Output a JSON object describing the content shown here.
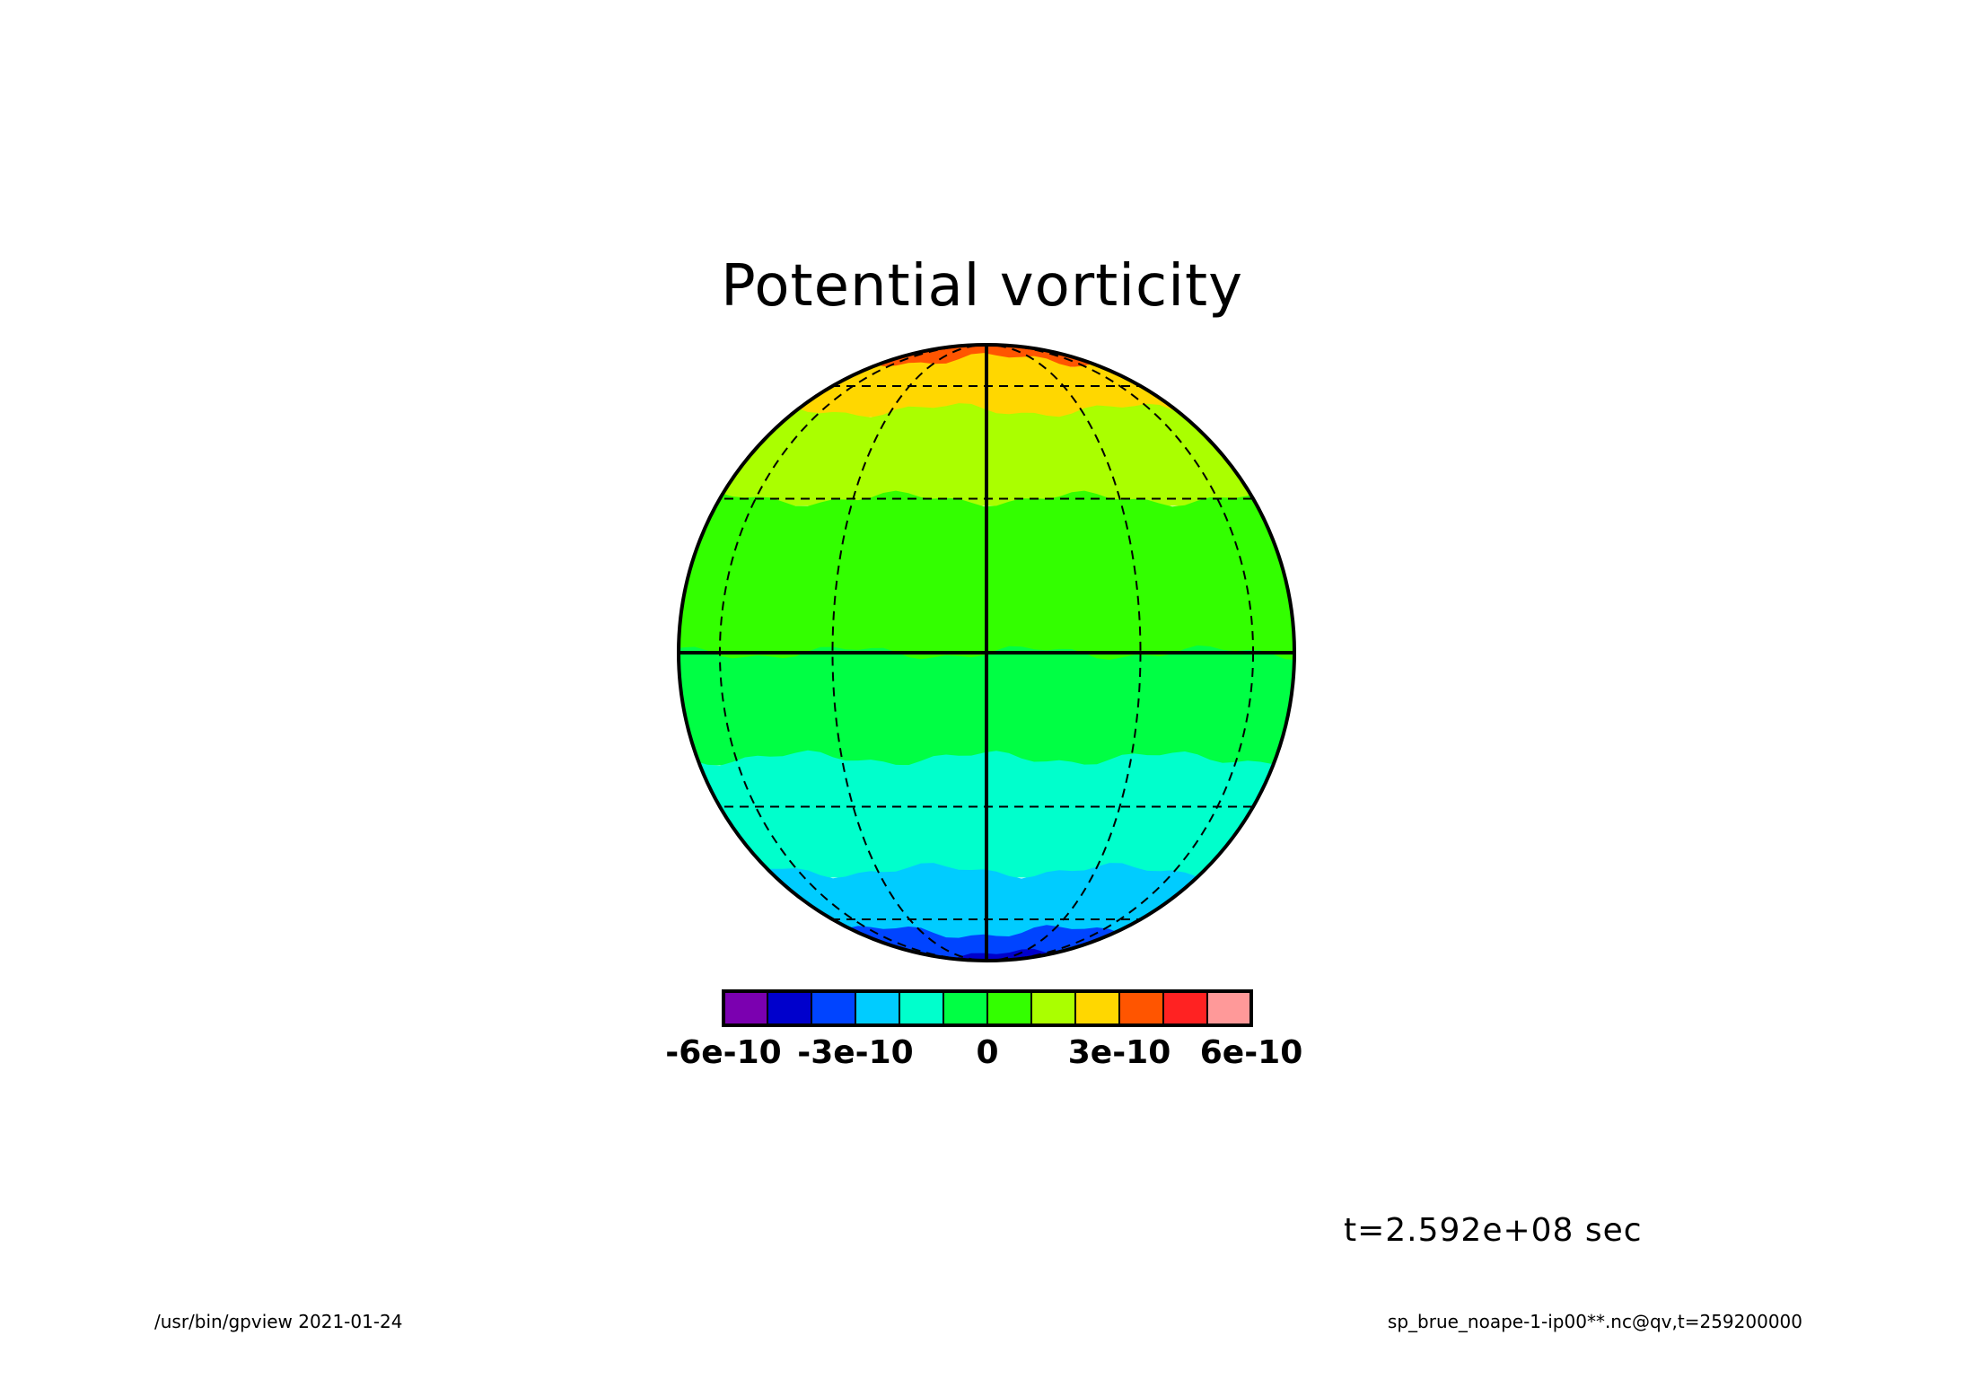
{
  "title": "Potential vorticity",
  "time_label": "t=2.592e+08 sec",
  "footer_left": "/usr/bin/gpview   2021-01-24",
  "footer_right": "sp_brue_noape-1-ip00**.nc@qv,t=259200000",
  "colorbar": {
    "colors": [
      "#7b00b0",
      "#0000cc",
      "#0044ff",
      "#00ccff",
      "#00ffcc",
      "#00ff44",
      "#33ff00",
      "#aaff00",
      "#ffd700",
      "#ff5500",
      "#ff2222",
      "#ff9999"
    ],
    "tick_labels": [
      "-6e-10",
      "-3e-10",
      "0",
      "3e-10",
      "6e-10"
    ]
  },
  "map_bands": [
    {
      "lat_top": 90,
      "lat_bottom": 72,
      "color": "#ff5500"
    },
    {
      "lat_top": 72,
      "lat_bottom": 52,
      "color": "#ffd700"
    },
    {
      "lat_top": 52,
      "lat_bottom": 30,
      "color": "#aaff00"
    },
    {
      "lat_top": 30,
      "lat_bottom": 0,
      "color": "#33ff00"
    },
    {
      "lat_top": 0,
      "lat_bottom": -20,
      "color": "#00ff44"
    },
    {
      "lat_top": -20,
      "lat_bottom": -45,
      "color": "#00ffcc"
    },
    {
      "lat_top": -45,
      "lat_bottom": -65,
      "color": "#00ccff"
    },
    {
      "lat_top": -65,
      "lat_bottom": -80,
      "color": "#0044ff"
    },
    {
      "lat_top": -80,
      "lat_bottom": -90,
      "color": "#0000cc"
    }
  ]
}
